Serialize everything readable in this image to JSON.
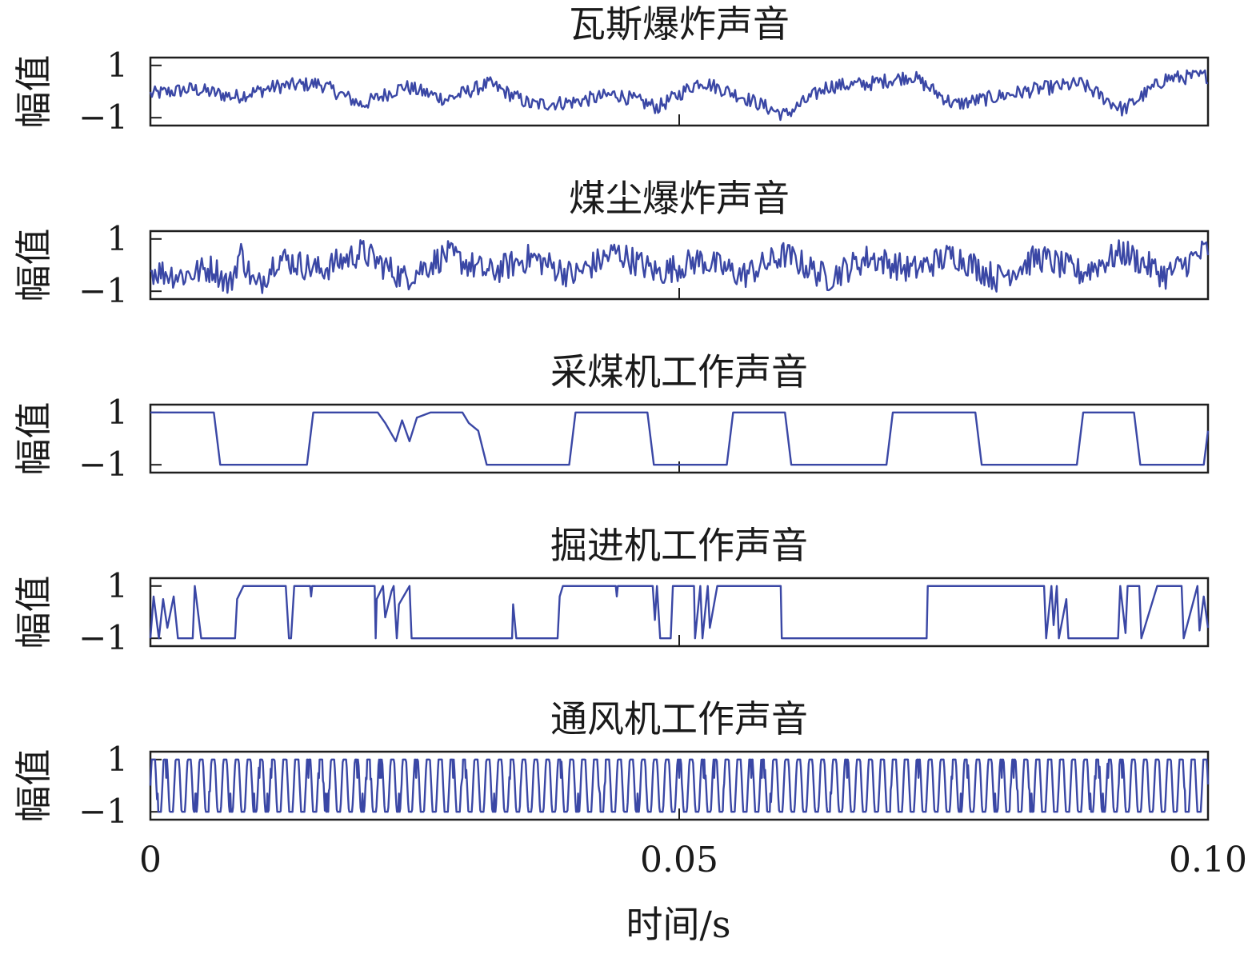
{
  "chart_data": {
    "type": "line",
    "layout": "stacked-panels",
    "xlabel": "时间/s",
    "xlim": [
      0,
      0.1
    ],
    "xticks": [
      {
        "value": 0,
        "label": "0"
      },
      {
        "value": 0.05,
        "label": "0.05"
      },
      {
        "value": 0.1,
        "label": "0.10"
      }
    ],
    "ylabel": "幅值",
    "ylim": [
      -1.3,
      1.3
    ],
    "yticks": [
      {
        "value": 1,
        "label": "1"
      },
      {
        "value": -1,
        "label": "−1"
      }
    ],
    "line_color": "#3a47a5",
    "panels": [
      {
        "title": "瓦斯爆炸声音",
        "signal_kind": "noise",
        "x": [
          0,
          0.004,
          0.008,
          0.012,
          0.016,
          0.02,
          0.024,
          0.028,
          0.032,
          0.036,
          0.04,
          0.044,
          0.048,
          0.052,
          0.056,
          0.06,
          0.064,
          0.068,
          0.072,
          0.076,
          0.08,
          0.084,
          0.088,
          0.092,
          0.096,
          0.1
        ],
        "y": [
          -0.1,
          0.1,
          -0.2,
          0.2,
          0.3,
          -0.5,
          0.2,
          -0.3,
          0.3,
          -0.5,
          -0.4,
          -0.1,
          -0.6,
          0.4,
          -0.2,
          -0.9,
          0.2,
          0.3,
          0.6,
          -0.5,
          -0.2,
          0.1,
          0.3,
          -0.7,
          0.5,
          0.6
        ]
      },
      {
        "title": "煤尘爆炸声音",
        "signal_kind": "noise",
        "x": [
          0,
          0.003,
          0.006,
          0.0075,
          0.0085,
          0.01,
          0.012,
          0.016,
          0.02,
          0.024,
          0.028,
          0.032,
          0.036,
          0.04,
          0.044,
          0.048,
          0.052,
          0.056,
          0.06,
          0.064,
          0.068,
          0.072,
          0.076,
          0.08,
          0.084,
          0.088,
          0.092,
          0.096,
          0.1
        ],
        "y": [
          -0.2,
          -0.4,
          -0.1,
          -0.8,
          0.5,
          -0.9,
          0.3,
          -0.2,
          0.5,
          -0.5,
          0.4,
          -0.3,
          0.3,
          -0.4,
          0.5,
          -0.3,
          0.2,
          -0.4,
          0.4,
          -0.5,
          0.3,
          -0.2,
          0.4,
          -0.5,
          0.3,
          -0.3,
          0.5,
          -0.4,
          0.6
        ]
      },
      {
        "title": "采煤机工作声音",
        "signal_kind": "square",
        "x": [
          0,
          0.006,
          0.0066,
          0.0148,
          0.0154,
          0.0215,
          0.0222,
          0.0232,
          0.0238,
          0.0245,
          0.0252,
          0.0265,
          0.0295,
          0.0301,
          0.031,
          0.0318,
          0.0396,
          0.0402,
          0.047,
          0.0476,
          0.0545,
          0.0551,
          0.06,
          0.0606,
          0.0696,
          0.0702,
          0.078,
          0.0786,
          0.0876,
          0.0882,
          0.093,
          0.0936,
          0.0996,
          0.1
        ],
        "y": [
          1,
          1,
          -1,
          -1,
          1,
          1,
          0.6,
          -0.1,
          0.7,
          -0.1,
          0.8,
          1,
          1,
          0.6,
          0.3,
          -1,
          -1,
          1,
          1,
          -1,
          -1,
          1,
          1,
          -1,
          -1,
          1,
          1,
          -1,
          -1,
          1,
          1,
          -1,
          -1,
          0.3
        ]
      },
      {
        "title": "掘进机工作声音",
        "signal_kind": "square",
        "x": [
          0,
          0.0003,
          0.0008,
          0.0012,
          0.0016,
          0.0022,
          0.0026,
          0.004,
          0.0042,
          0.0048,
          0.005,
          0.008,
          0.0082,
          0.0088,
          0.0092,
          0.0128,
          0.0131,
          0.0133,
          0.0136,
          0.0151,
          0.0152,
          0.0153,
          0.0212,
          0.0213,
          0.0214,
          0.022,
          0.0222,
          0.0228,
          0.023,
          0.0233,
          0.0235,
          0.0245,
          0.0247,
          0.0342,
          0.0343,
          0.0346,
          0.0348,
          0.0385,
          0.0387,
          0.039,
          0.0392,
          0.044,
          0.0441,
          0.0442,
          0.0475,
          0.0477,
          0.0479,
          0.0482,
          0.0492,
          0.0494,
          0.0496,
          0.0498,
          0.0514,
          0.0515,
          0.052,
          0.0522,
          0.0527,
          0.0529,
          0.0536,
          0.0538,
          0.0596,
          0.0597,
          0.0734,
          0.0735,
          0.0845,
          0.0847,
          0.0852,
          0.0854,
          0.0857,
          0.0859,
          0.0866,
          0.0868,
          0.0915,
          0.0917,
          0.0922,
          0.0924,
          0.0935,
          0.0937,
          0.0952,
          0.0954,
          0.0975,
          0.0977,
          0.099,
          0.0992,
          0.0996,
          0.1
        ],
        "y": [
          -1,
          0.6,
          -1,
          0.5,
          -0.6,
          0.6,
          -1,
          -1,
          1,
          -1,
          -1,
          -1,
          0.5,
          1,
          1,
          1,
          -1,
          -1,
          1,
          1,
          0.6,
          1,
          1,
          -1,
          0.5,
          1,
          -0.2,
          0.8,
          1,
          -1,
          0.3,
          1,
          -1,
          -1,
          0.3,
          -1,
          -1,
          -1,
          0.6,
          1,
          1,
          1,
          0.6,
          1,
          1,
          -0.3,
          1,
          -1,
          -1,
          1,
          1,
          1,
          1,
          -1,
          1,
          -1,
          1,
          -0.6,
          1,
          1,
          1,
          -1,
          -1,
          1,
          1,
          -1,
          1,
          -0.5,
          1,
          -1,
          0.5,
          -1,
          -1,
          1,
          -0.8,
          1,
          1,
          -1,
          1,
          1,
          1,
          -1,
          1,
          -0.7,
          0.6,
          -0.6
        ]
      },
      {
        "title": "通风机工作声音",
        "signal_kind": "periodic",
        "x": [
          0,
          0.0006,
          0.0012,
          0.0018,
          0.0024,
          0.003,
          0.0036,
          0.0042,
          0.0048,
          0.0054,
          0.1
        ],
        "y": [
          0,
          1,
          -1,
          1,
          -1,
          1,
          -1,
          1,
          -1,
          1,
          -0.4
        ],
        "period_s": 0.00113
      }
    ]
  }
}
